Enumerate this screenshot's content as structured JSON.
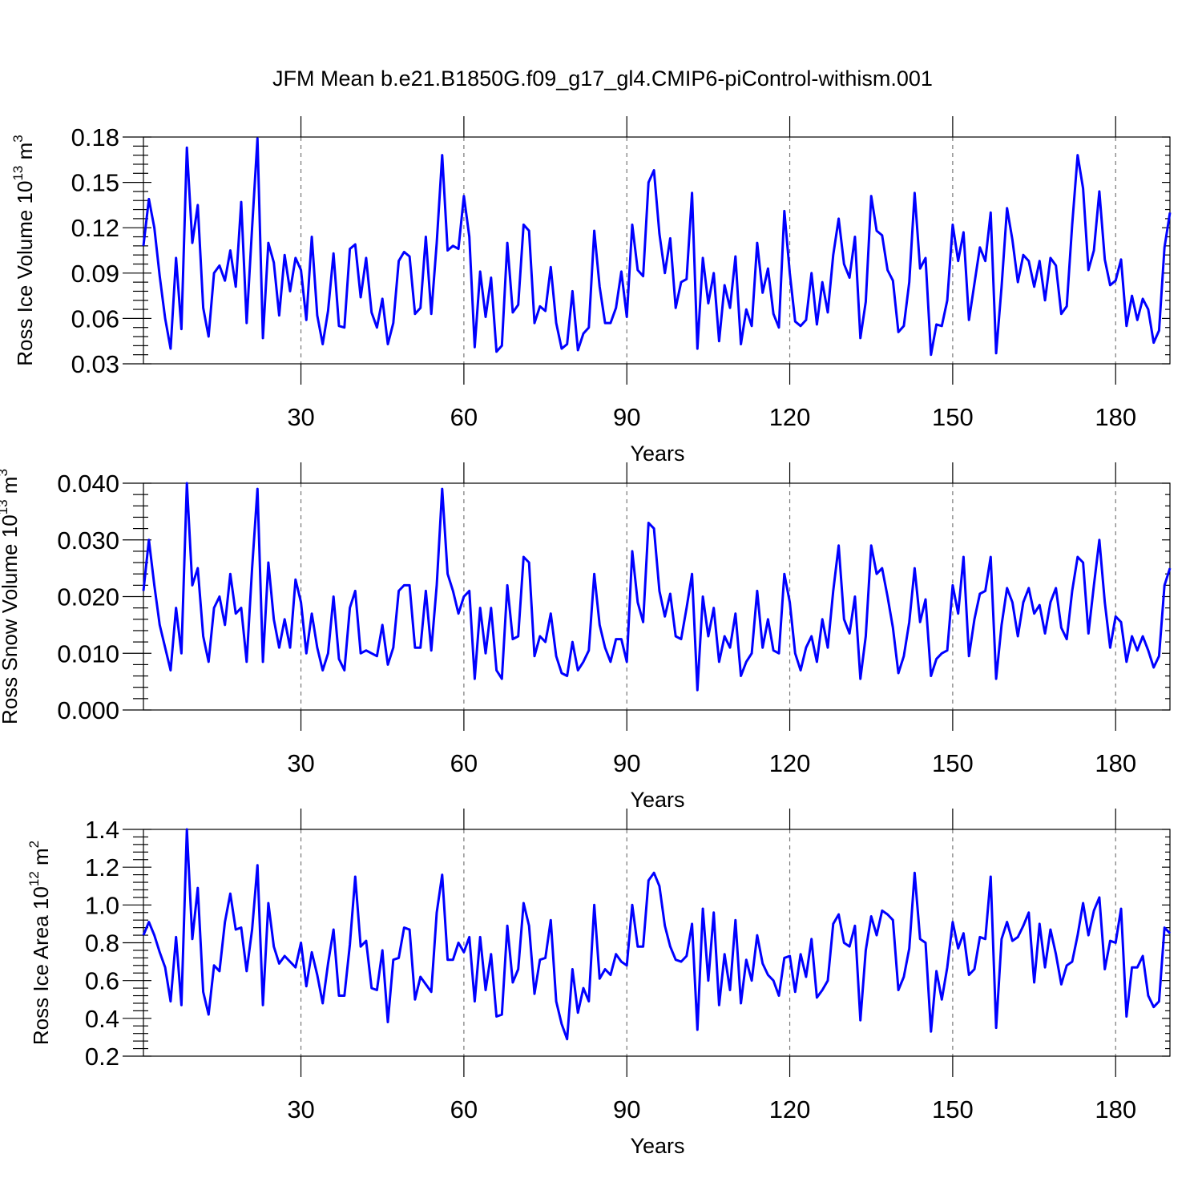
{
  "chart_data": [
    {
      "type": "line",
      "title": "JFM Mean b.e21.B1850G.f09_g17_gl4.CMIP6-piControl-withism.001",
      "xlabel": "Years",
      "ylabel": "Ross Ice Volume",
      "yunit_base": "10",
      "yunit_exp": "13",
      "yunit_suffix": "m",
      "yunit_sup": "3",
      "xlim": [
        1,
        190
      ],
      "ylim": [
        0.03,
        0.18
      ],
      "xticks": [
        30,
        60,
        90,
        120,
        150,
        180
      ],
      "yticks": [
        0.03,
        0.06,
        0.09,
        0.12,
        0.15,
        0.18
      ],
      "ytick_labels": [
        "0.03",
        "0.06",
        "0.09",
        "0.12",
        "0.15",
        "0.18"
      ],
      "grid": "vertical dashed at x ticks",
      "color": "#0000ff",
      "x_start": 1,
      "values": [
        0.108,
        0.139,
        0.12,
        0.088,
        0.06,
        0.04,
        0.1,
        0.053,
        0.173,
        0.11,
        0.135,
        0.067,
        0.048,
        0.09,
        0.095,
        0.085,
        0.105,
        0.081,
        0.137,
        0.057,
        0.12,
        0.179,
        0.047,
        0.11,
        0.097,
        0.062,
        0.102,
        0.078,
        0.1,
        0.092,
        0.059,
        0.114,
        0.062,
        0.043,
        0.065,
        0.103,
        0.055,
        0.054,
        0.106,
        0.109,
        0.074,
        0.1,
        0.064,
        0.054,
        0.073,
        0.043,
        0.057,
        0.098,
        0.104,
        0.101,
        0.063,
        0.067,
        0.114,
        0.063,
        0.11,
        0.168,
        0.105,
        0.108,
        0.106,
        0.141,
        0.114,
        0.041,
        0.091,
        0.061,
        0.087,
        0.038,
        0.042,
        0.11,
        0.064,
        0.069,
        0.122,
        0.118,
        0.057,
        0.068,
        0.065,
        0.094,
        0.057,
        0.04,
        0.043,
        0.078,
        0.039,
        0.05,
        0.054,
        0.118,
        0.081,
        0.057,
        0.057,
        0.067,
        0.091,
        0.061,
        0.122,
        0.092,
        0.088,
        0.15,
        0.158,
        0.116,
        0.09,
        0.113,
        0.067,
        0.084,
        0.086,
        0.143,
        0.04,
        0.1,
        0.07,
        0.09,
        0.045,
        0.082,
        0.067,
        0.101,
        0.043,
        0.066,
        0.055,
        0.11,
        0.077,
        0.093,
        0.063,
        0.054,
        0.131,
        0.09,
        0.058,
        0.055,
        0.059,
        0.09,
        0.056,
        0.084,
        0.064,
        0.102,
        0.126,
        0.096,
        0.087,
        0.114,
        0.047,
        0.071,
        0.141,
        0.118,
        0.115,
        0.092,
        0.085,
        0.051,
        0.055,
        0.084,
        0.143,
        0.093,
        0.1,
        0.036,
        0.056,
        0.055,
        0.072,
        0.122,
        0.098,
        0.117,
        0.059,
        0.083,
        0.107,
        0.098,
        0.13,
        0.037,
        0.081,
        0.133,
        0.112,
        0.084,
        0.102,
        0.098,
        0.081,
        0.098,
        0.072,
        0.1,
        0.095,
        0.063,
        0.068,
        0.122,
        0.168,
        0.146,
        0.092,
        0.105,
        0.144,
        0.099,
        0.082,
        0.085,
        0.099,
        0.055,
        0.075,
        0.059,
        0.073,
        0.066,
        0.044,
        0.052,
        0.107,
        0.13
      ]
    },
    {
      "type": "line",
      "xlabel": "Years",
      "ylabel": "Ross Snow Volume",
      "yunit_base": "10",
      "yunit_exp": "13",
      "yunit_suffix": "m",
      "yunit_sup": "3",
      "xlim": [
        1,
        190
      ],
      "ylim": [
        0.0,
        0.04
      ],
      "xticks": [
        30,
        60,
        90,
        120,
        150,
        180
      ],
      "yticks": [
        0.0,
        0.01,
        0.02,
        0.03,
        0.04
      ],
      "ytick_labels": [
        "0.000",
        "0.010",
        "0.020",
        "0.030",
        "0.040"
      ],
      "grid": "vertical dashed at x ticks",
      "color": "#0000ff",
      "x_start": 1,
      "values": [
        0.021,
        0.03,
        0.022,
        0.015,
        0.011,
        0.007,
        0.018,
        0.01,
        0.04,
        0.022,
        0.025,
        0.013,
        0.0085,
        0.018,
        0.02,
        0.015,
        0.024,
        0.017,
        0.018,
        0.0085,
        0.025,
        0.039,
        0.0085,
        0.026,
        0.016,
        0.011,
        0.016,
        0.011,
        0.023,
        0.019,
        0.01,
        0.017,
        0.011,
        0.007,
        0.01,
        0.02,
        0.009,
        0.007,
        0.018,
        0.021,
        0.01,
        0.0105,
        0.01,
        0.0095,
        0.015,
        0.008,
        0.011,
        0.021,
        0.022,
        0.022,
        0.011,
        0.011,
        0.021,
        0.0105,
        0.022,
        0.039,
        0.024,
        0.021,
        0.017,
        0.02,
        0.021,
        0.0055,
        0.018,
        0.01,
        0.018,
        0.007,
        0.0055,
        0.022,
        0.0125,
        0.013,
        0.027,
        0.026,
        0.0095,
        0.013,
        0.012,
        0.017,
        0.0095,
        0.0065,
        0.006,
        0.012,
        0.007,
        0.0085,
        0.0105,
        0.024,
        0.015,
        0.011,
        0.0085,
        0.0125,
        0.0125,
        0.0085,
        0.028,
        0.019,
        0.0155,
        0.033,
        0.032,
        0.021,
        0.0165,
        0.0205,
        0.013,
        0.0125,
        0.018,
        0.024,
        0.0035,
        0.02,
        0.013,
        0.018,
        0.0085,
        0.013,
        0.011,
        0.017,
        0.006,
        0.0085,
        0.01,
        0.021,
        0.011,
        0.016,
        0.0105,
        0.01,
        0.024,
        0.019,
        0.01,
        0.007,
        0.011,
        0.013,
        0.0085,
        0.016,
        0.011,
        0.021,
        0.029,
        0.016,
        0.0135,
        0.02,
        0.0055,
        0.013,
        0.029,
        0.024,
        0.025,
        0.02,
        0.0145,
        0.0065,
        0.0095,
        0.0155,
        0.025,
        0.0155,
        0.0195,
        0.006,
        0.009,
        0.01,
        0.0105,
        0.022,
        0.017,
        0.027,
        0.0095,
        0.016,
        0.0205,
        0.021,
        0.027,
        0.0055,
        0.015,
        0.0215,
        0.019,
        0.013,
        0.019,
        0.0215,
        0.017,
        0.0185,
        0.0135,
        0.019,
        0.0215,
        0.0145,
        0.0125,
        0.021,
        0.027,
        0.026,
        0.0135,
        0.022,
        0.03,
        0.019,
        0.011,
        0.0165,
        0.0155,
        0.0085,
        0.013,
        0.0105,
        0.013,
        0.0105,
        0.0075,
        0.0095,
        0.022,
        0.025
      ]
    },
    {
      "type": "line",
      "xlabel": "Years",
      "ylabel": "Ross Ice Area",
      "yunit_base": "10",
      "yunit_exp": "12",
      "yunit_suffix": "m",
      "yunit_sup": "2",
      "xlim": [
        1,
        190
      ],
      "ylim": [
        0.2,
        1.4
      ],
      "xticks": [
        30,
        60,
        90,
        120,
        150,
        180
      ],
      "yticks": [
        0.2,
        0.4,
        0.6,
        0.8,
        1.0,
        1.2,
        1.4
      ],
      "ytick_labels": [
        "0.2",
        "0.4",
        "0.6",
        "0.8",
        "1.0",
        "1.2",
        "1.4"
      ],
      "grid": "vertical dashed at x ticks",
      "color": "#0000ff",
      "x_start": 1,
      "values": [
        0.84,
        0.91,
        0.84,
        0.75,
        0.67,
        0.49,
        0.83,
        0.47,
        1.4,
        0.82,
        1.09,
        0.54,
        0.42,
        0.68,
        0.65,
        0.91,
        1.06,
        0.87,
        0.88,
        0.65,
        0.87,
        1.21,
        0.47,
        1.01,
        0.78,
        0.69,
        0.73,
        0.7,
        0.67,
        0.8,
        0.57,
        0.75,
        0.63,
        0.48,
        0.69,
        0.87,
        0.52,
        0.52,
        0.79,
        1.15,
        0.78,
        0.81,
        0.56,
        0.55,
        0.76,
        0.38,
        0.71,
        0.72,
        0.88,
        0.87,
        0.5,
        0.62,
        0.58,
        0.54,
        0.96,
        1.16,
        0.71,
        0.71,
        0.8,
        0.75,
        0.83,
        0.49,
        0.83,
        0.55,
        0.74,
        0.41,
        0.42,
        0.89,
        0.59,
        0.66,
        1.01,
        0.89,
        0.53,
        0.71,
        0.72,
        0.92,
        0.49,
        0.37,
        0.29,
        0.66,
        0.43,
        0.56,
        0.49,
        1.0,
        0.61,
        0.66,
        0.63,
        0.74,
        0.7,
        0.68,
        1.0,
        0.78,
        0.78,
        1.13,
        1.17,
        1.1,
        0.89,
        0.78,
        0.71,
        0.7,
        0.73,
        0.9,
        0.34,
        0.98,
        0.6,
        0.96,
        0.47,
        0.74,
        0.55,
        0.92,
        0.48,
        0.71,
        0.6,
        0.84,
        0.69,
        0.63,
        0.6,
        0.52,
        0.72,
        0.73,
        0.54,
        0.74,
        0.62,
        0.82,
        0.51,
        0.55,
        0.6,
        0.9,
        0.95,
        0.8,
        0.78,
        0.89,
        0.39,
        0.76,
        0.94,
        0.84,
        0.97,
        0.95,
        0.92,
        0.55,
        0.62,
        0.77,
        1.17,
        0.82,
        0.8,
        0.33,
        0.65,
        0.5,
        0.67,
        0.91,
        0.77,
        0.85,
        0.63,
        0.66,
        0.83,
        0.82,
        1.15,
        0.35,
        0.82,
        0.91,
        0.81,
        0.83,
        0.89,
        0.96,
        0.59,
        0.9,
        0.67,
        0.87,
        0.74,
        0.58,
        0.68,
        0.7,
        0.84,
        1.01,
        0.84,
        0.97,
        1.04,
        0.66,
        0.81,
        0.8,
        0.98,
        0.41,
        0.67,
        0.67,
        0.73,
        0.52,
        0.46,
        0.49,
        0.88,
        0.85
      ]
    }
  ]
}
